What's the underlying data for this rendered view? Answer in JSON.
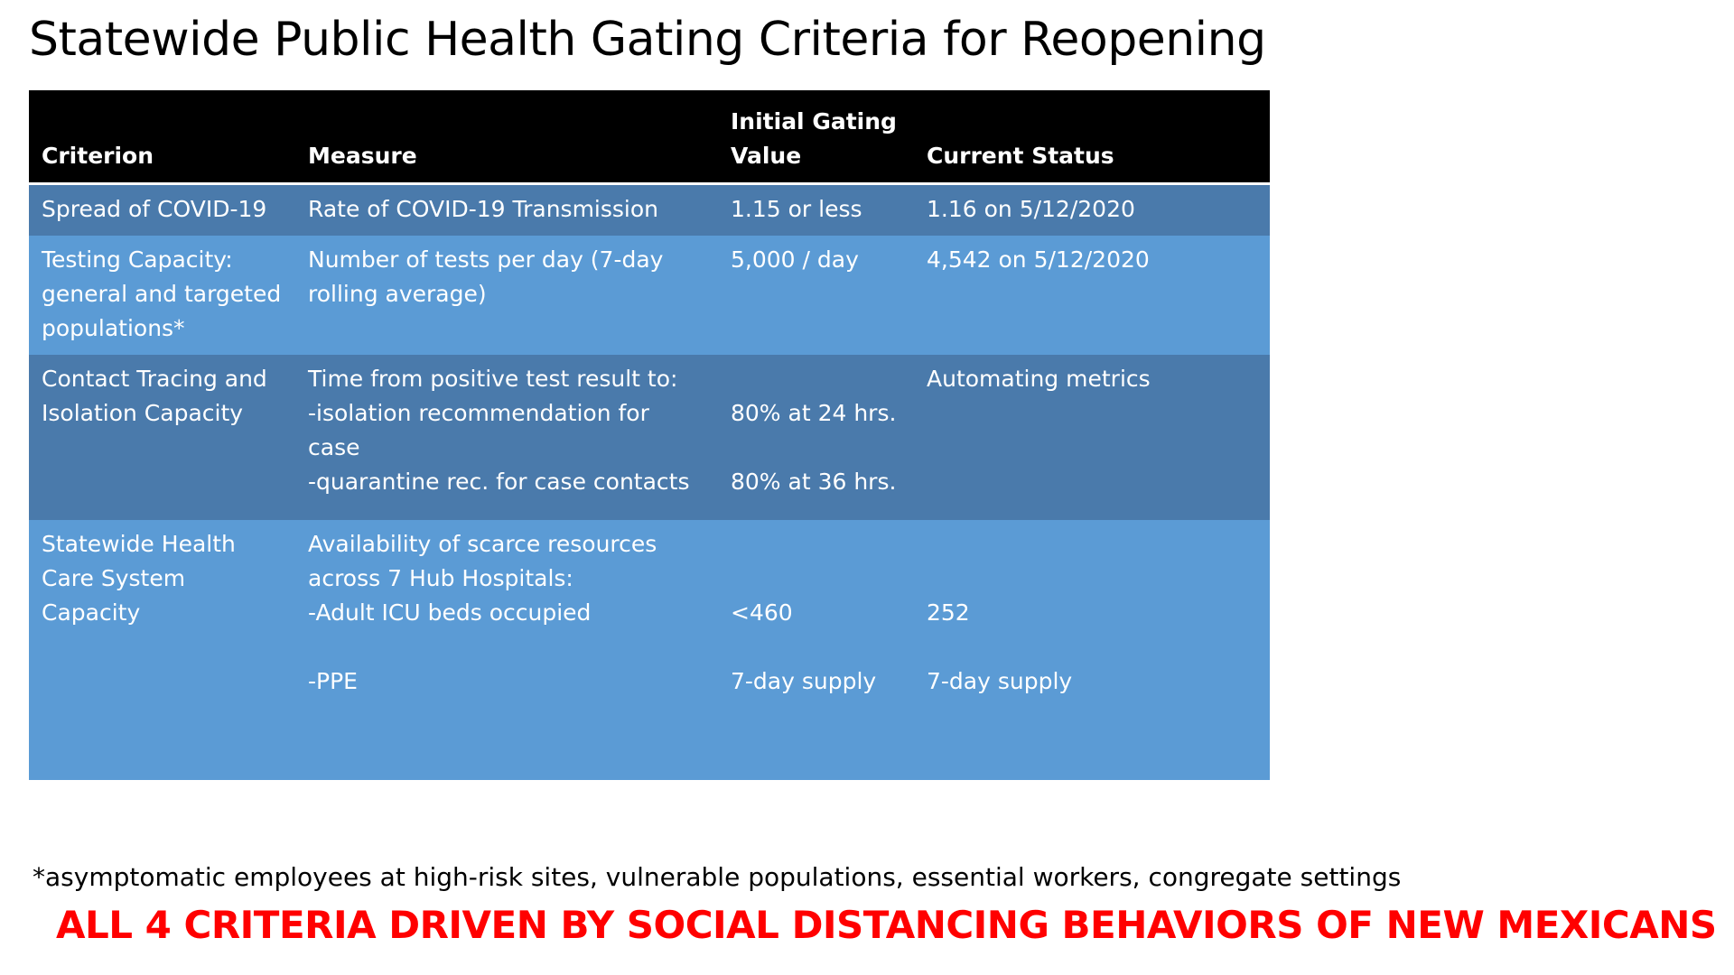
{
  "title": "Statewide Public Health Gating Criteria for Reopening",
  "table": {
    "headers": {
      "criterion": "Criterion",
      "measure": "Measure",
      "initial_line1": "Initial Gating",
      "initial_line2": "Value",
      "status": "Current Status"
    },
    "rows": [
      {
        "criterion": [
          "Spread of COVID-19"
        ],
        "measure": [
          "Rate of COVID-19 Transmission"
        ],
        "initial": "1.15 or less",
        "status": "1.16 on 5/12/2020"
      },
      {
        "criterion": [
          "Testing Capacity:",
          "general and targeted",
          "populations*"
        ],
        "measure": [
          "Number of tests per day (7-day",
          "rolling average)"
        ],
        "initial": "5,000 / day",
        "status": "4,542 on 5/12/2020"
      },
      {
        "criterion": [
          "Contact Tracing and",
          "Isolation Capacity"
        ],
        "measure": [
          "Time from positive test result to:",
          "-isolation recommendation for",
          "case",
          "-quarantine rec. for case contacts"
        ],
        "initial_1": "80% at 24 hrs.",
        "initial_2": "80% at 36 hrs.",
        "status": "Automating metrics"
      },
      {
        "criterion": [
          "Statewide Health",
          "Care System",
          "Capacity"
        ],
        "measure": [
          "Availability of scarce resources",
          "across 7 Hub Hospitals:",
          "-Adult ICU beds occupied",
          "-PPE"
        ],
        "initial_icu": "<460",
        "initial_ppe": "7-day supply",
        "status_icu": "252",
        "status_ppe": "7-day supply"
      }
    ]
  },
  "footnote": "*asymptomatic employees at high-risk sites, vulnerable populations, essential workers, congregate settings",
  "banner": "ALL 4 CRITERIA DRIVEN BY SOCIAL DISTANCING BEHAVIORS OF NEW MEXICANS",
  "colors": {
    "header_bg": "#000000",
    "row_dark": "#4a7aab",
    "row_light": "#5b9bd5",
    "banner_text": "#ff0000"
  }
}
